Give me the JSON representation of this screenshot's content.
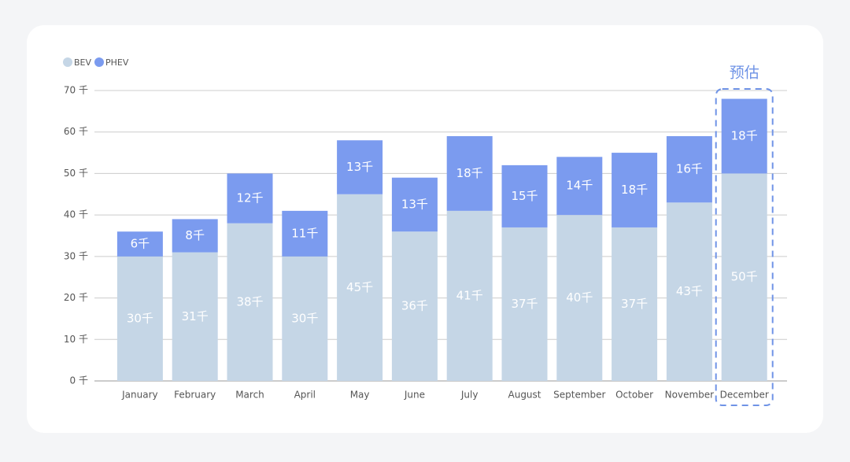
{
  "chart_data": {
    "type": "stacked_bar",
    "annotation": "预估",
    "categories": [
      "January",
      "February",
      "March",
      "April",
      "May",
      "June",
      "July",
      "August",
      "September",
      "October",
      "November",
      "December"
    ],
    "series": [
      {
        "name": "BEV",
        "color": "#c5d6e6",
        "values": [
          30,
          31,
          38,
          30,
          45,
          36,
          41,
          37,
          40,
          37,
          43,
          50
        ],
        "value_labels": [
          "30千",
          "31千",
          "38千",
          "30千",
          "45千",
          "36千",
          "41千",
          "37千",
          "40千",
          "37千",
          "43千",
          "50千"
        ]
      },
      {
        "name": "PHEV",
        "color": "#7b9bef",
        "values": [
          6,
          8,
          12,
          11,
          13,
          13,
          18,
          15,
          14,
          18,
          16,
          18
        ],
        "value_labels": [
          "6千",
          "8千",
          "12千",
          "11千",
          "13千",
          "13千",
          "18千",
          "15千",
          "14千",
          "18千",
          "16千",
          "18千"
        ]
      }
    ],
    "ylim": [
      0,
      70
    ],
    "yticks": [
      {
        "value": 0,
        "label": "0 千"
      },
      {
        "value": 10,
        "label": "10 千"
      },
      {
        "value": 20,
        "label": "20 千"
      },
      {
        "value": 30,
        "label": "30 千"
      },
      {
        "value": 40,
        "label": "40 千"
      },
      {
        "value": 50,
        "label": "50 千"
      },
      {
        "value": 60,
        "label": "60 千"
      },
      {
        "value": 70,
        "label": "70 千"
      }
    ],
    "grid": true,
    "legend": "top-left"
  }
}
